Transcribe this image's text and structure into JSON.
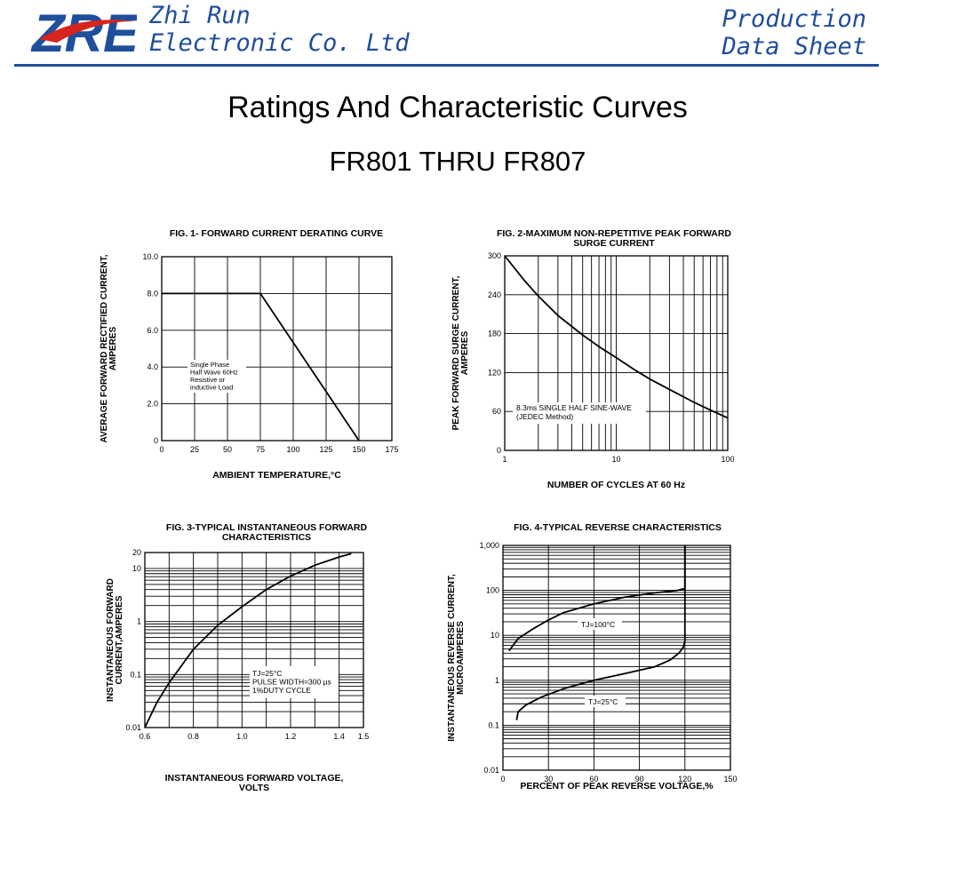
{
  "header": {
    "logo_text": "ZRE",
    "company_line1": "Zhi Run",
    "company_line2": "Electronic Co. Ltd",
    "sheet_line1": "Production",
    "sheet_line2": "Data Sheet",
    "accent_color": "#1f4e9c"
  },
  "page": {
    "title": "Ratings And  Characteristic Curves",
    "subtitle": "FR801 THRU FR807"
  },
  "chart_data": [
    {
      "id": "fig1",
      "type": "line",
      "title": "FIG. 1- FORWARD CURRENT DERATING CURVE",
      "xlabel": "AMBIENT TEMPERATURE,°C",
      "ylabel": [
        "AVERAGE FORWARD RECTIFIED CURRENT,",
        "AMPERES"
      ],
      "xscale": "linear",
      "yscale": "linear",
      "xlim": [
        0,
        175
      ],
      "ylim": [
        0,
        10
      ],
      "xticks": [
        0,
        25,
        50,
        75,
        100,
        125,
        150,
        175
      ],
      "xtick_labels": [
        "0",
        "25",
        "50",
        "75",
        "100",
        "125",
        "150",
        "175"
      ],
      "yticks": [
        0,
        2,
        4,
        6,
        8,
        10
      ],
      "ytick_labels": [
        "0",
        "2.0",
        "4.0",
        "6.0",
        "8.0",
        "10.0"
      ],
      "grid": true,
      "annotation": [
        "Single Phase",
        "Half Wave 60Hz",
        "Resistive or",
        "inductive Load"
      ],
      "series": [
        {
          "x": [
            0,
            75,
            150
          ],
          "y": [
            8,
            8,
            0
          ]
        }
      ]
    },
    {
      "id": "fig2",
      "type": "line",
      "title": [
        "FIG. 2-MAXIMUM NON-REPETITIVE PEAK FORWARD",
        "SURGE CURRENT"
      ],
      "xlabel": "NUMBER OF CYCLES AT 60 Hz",
      "ylabel": [
        "PEAK  FORWARD SURGE CURRENT,",
        "AMPERES"
      ],
      "xscale": "log",
      "yscale": "linear",
      "xlim": [
        1,
        100
      ],
      "ylim": [
        0,
        300
      ],
      "xticks": [
        1,
        10,
        100
      ],
      "xtick_labels": [
        "1",
        "10",
        "100"
      ],
      "yticks": [
        0,
        60,
        120,
        180,
        240,
        300
      ],
      "ytick_labels": [
        "0",
        "60",
        "120",
        "180",
        "240",
        "300"
      ],
      "grid": true,
      "annotation": [
        "8.3ms SINGLE HALF SINE-WAVE",
        "(JEDEC Method)"
      ],
      "series": [
        {
          "x": [
            1,
            1.5,
            2,
            3,
            5,
            7,
            10,
            15,
            20,
            30,
            50,
            70,
            100
          ],
          "y": [
            300,
            262,
            238,
            208,
            178,
            160,
            143,
            123,
            110,
            94,
            74,
            62,
            50
          ]
        }
      ]
    },
    {
      "id": "fig3",
      "type": "line",
      "title": [
        "FIG. 3-TYPICAL INSTANTANEOUS FORWARD",
        "CHARACTERISTICS"
      ],
      "xlabel": [
        "INSTANTANEOUS FORWARD VOLTAGE,",
        "VOLTS"
      ],
      "ylabel": [
        "INSTANTANEOUS FORWARD",
        "CURRENT,AMPERES"
      ],
      "xscale": "linear",
      "yscale": "log",
      "xlim": [
        0.6,
        1.5
      ],
      "ylim": [
        0.01,
        20
      ],
      "xticks": [
        0.6,
        0.8,
        1.0,
        1.2,
        1.4,
        1.5
      ],
      "xtick_labels": [
        "0.6",
        "0.8",
        "1.0",
        "1.2",
        "1.4",
        "1.5"
      ],
      "yticks": [
        0.01,
        0.1,
        1,
        10,
        20
      ],
      "ytick_labels": [
        "0.01",
        "0.1",
        "1",
        "10",
        "20"
      ],
      "grid": true,
      "annotation": [
        "TJ=25°C",
        "PULSE WIDTH=300 µs",
        "1%DUTY CYCLE"
      ],
      "series": [
        {
          "x": [
            0.6,
            0.65,
            0.7,
            0.8,
            0.9,
            1.0,
            1.1,
            1.2,
            1.3,
            1.4,
            1.45
          ],
          "y": [
            0.01,
            0.03,
            0.07,
            0.3,
            0.85,
            1.9,
            4.0,
            7.2,
            11.5,
            16.5,
            19
          ]
        }
      ]
    },
    {
      "id": "fig4",
      "type": "line",
      "title": "FIG. 4-TYPICAL REVERSE CHARACTERISTICS",
      "xlabel": "PERCENT OF PEAK REVERSE VOLTAGE,%",
      "ylabel": [
        "INSTANTANEOUS REVERSE CURRENT,",
        "MICROAMPERES"
      ],
      "xscale": "linear",
      "yscale": "log",
      "xlim": [
        0,
        150
      ],
      "ylim": [
        0.01,
        1000
      ],
      "xticks": [
        0,
        30,
        60,
        90,
        120,
        150
      ],
      "xtick_labels": [
        "0",
        "30",
        "60",
        "90",
        "120",
        "150"
      ],
      "yticks": [
        0.01,
        0.1,
        1,
        10,
        100,
        1000
      ],
      "ytick_labels": [
        "0.01",
        "0.1",
        "1",
        "10",
        "100",
        "1,000"
      ],
      "grid": true,
      "series": [
        {
          "name": "TJ=100°C",
          "x": [
            4,
            10,
            20,
            30,
            40,
            60,
            80,
            100,
            115,
            120,
            120
          ],
          "y": [
            4.5,
            8.5,
            14,
            22,
            32,
            50,
            70,
            88,
            100,
            110,
            1000
          ]
        },
        {
          "name": "TJ=25°C",
          "x": [
            9,
            10,
            15,
            25,
            40,
            60,
            80,
            100,
            110,
            116,
            119,
            120,
            120
          ],
          "y": [
            0.13,
            0.2,
            0.28,
            0.42,
            0.65,
            1.0,
            1.4,
            2.0,
            2.8,
            4.0,
            5.5,
            7.5,
            1000
          ]
        }
      ]
    }
  ]
}
